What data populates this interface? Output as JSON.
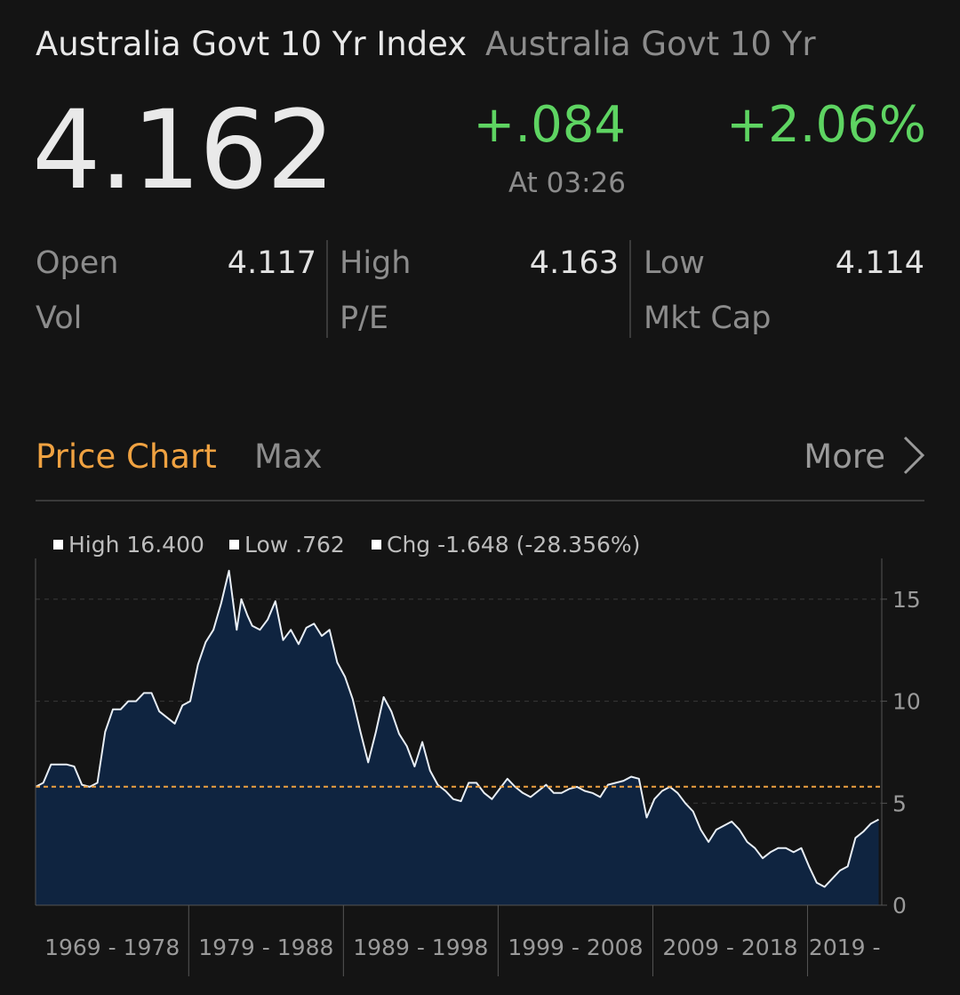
{
  "header": {
    "title": "Australia Govt 10 Yr Index",
    "subtitle": "Australia Govt 10 Yr"
  },
  "quote": {
    "price": "4.162",
    "change": "+.084",
    "change_pct": "+2.06%",
    "time": "At 03:26",
    "positive_color": "#5ed462"
  },
  "stats": {
    "open_label": "Open",
    "open_value": "4.117",
    "high_label": "High",
    "high_value": "4.163",
    "low_label": "Low",
    "low_value": "4.114",
    "vol_label": "Vol",
    "pe_label": "P/E",
    "mktcap_label": "Mkt Cap"
  },
  "chart_section": {
    "title": "Price Chart",
    "range": "Max",
    "more_label": "More",
    "accent_color": "#f0a241",
    "chevron_icon": "chevron-right-icon"
  },
  "chart_data": {
    "type": "area",
    "legend": {
      "high": "High 16.400",
      "low": "Low .762",
      "chg": "Chg -1.648 (-28.356%)"
    },
    "y_ticks": [
      "15",
      "10",
      "5",
      "0"
    ],
    "y_tick_values": [
      15,
      10,
      5,
      0
    ],
    "ylim": [
      0,
      17
    ],
    "x_ticks": [
      "1969 - 1978",
      "1979 - 1988",
      "1989 - 1998",
      "1999 - 2008",
      "2009 - 2018",
      "2019 -"
    ],
    "xlim": [
      1969,
      2023.7
    ],
    "reference_line": 5.81,
    "fill_color": "#0f2440",
    "line_color": "#e8eef5",
    "ref_line_color": "#f0a241",
    "x": [
      1969.0,
      1969.5,
      1970.0,
      1970.5,
      1971.0,
      1971.5,
      1972.0,
      1972.5,
      1973.0,
      1973.5,
      1974.0,
      1974.5,
      1975.0,
      1975.5,
      1976.0,
      1976.5,
      1977.0,
      1977.5,
      1978.0,
      1978.5,
      1979.0,
      1979.5,
      1980.0,
      1980.5,
      1981.0,
      1981.5,
      1982.0,
      1982.3,
      1982.7,
      1983.0,
      1983.5,
      1984.0,
      1984.5,
      1985.0,
      1985.5,
      1986.0,
      1986.5,
      1987.0,
      1987.5,
      1988.0,
      1988.5,
      1989.0,
      1989.5,
      1990.0,
      1990.5,
      1991.0,
      1991.5,
      1992.0,
      1992.5,
      1993.0,
      1993.5,
      1994.0,
      1994.5,
      1995.0,
      1995.5,
      1996.0,
      1996.5,
      1997.0,
      1997.5,
      1998.0,
      1998.5,
      1999.0,
      1999.5,
      2000.0,
      2000.5,
      2001.0,
      2001.5,
      2002.0,
      2002.5,
      2003.0,
      2003.5,
      2004.0,
      2004.5,
      2005.0,
      2005.5,
      2006.0,
      2006.5,
      2007.0,
      2007.5,
      2008.0,
      2008.5,
      2009.0,
      2009.5,
      2010.0,
      2010.5,
      2011.0,
      2011.5,
      2012.0,
      2012.5,
      2013.0,
      2013.5,
      2014.0,
      2014.5,
      2015.0,
      2015.5,
      2016.0,
      2016.5,
      2017.0,
      2017.5,
      2018.0,
      2018.5,
      2019.0,
      2019.5,
      2020.0,
      2020.5,
      2021.0,
      2021.5,
      2022.0,
      2022.5,
      2023.0,
      2023.5
    ],
    "y": [
      5.8,
      6.0,
      6.9,
      6.9,
      6.9,
      6.8,
      5.9,
      5.8,
      6.0,
      8.5,
      9.6,
      9.6,
      10.0,
      10.0,
      10.4,
      10.4,
      9.5,
      9.2,
      8.9,
      9.8,
      10.0,
      11.8,
      12.9,
      13.5,
      14.8,
      16.4,
      13.5,
      15.0,
      14.2,
      13.7,
      13.5,
      14.0,
      14.9,
      13.0,
      13.5,
      12.8,
      13.6,
      13.8,
      13.2,
      13.5,
      11.9,
      11.2,
      10.1,
      8.5,
      7.0,
      8.5,
      10.2,
      9.5,
      8.4,
      7.8,
      6.8,
      8.0,
      6.6,
      5.9,
      5.6,
      5.2,
      5.1,
      6.0,
      6.0,
      5.5,
      5.2,
      5.7,
      6.2,
      5.8,
      5.5,
      5.3,
      5.6,
      5.9,
      5.5,
      5.5,
      5.7,
      5.8,
      5.6,
      5.5,
      5.3,
      5.9,
      6.0,
      6.1,
      6.3,
      6.2,
      4.3,
      5.2,
      5.6,
      5.8,
      5.5,
      5.0,
      4.6,
      3.7,
      3.1,
      3.7,
      3.9,
      4.1,
      3.7,
      3.1,
      2.8,
      2.3,
      2.6,
      2.8,
      2.8,
      2.6,
      2.8,
      1.9,
      1.1,
      0.9,
      1.3,
      1.7,
      1.9,
      3.3,
      3.6,
      4.0,
      4.2
    ]
  }
}
